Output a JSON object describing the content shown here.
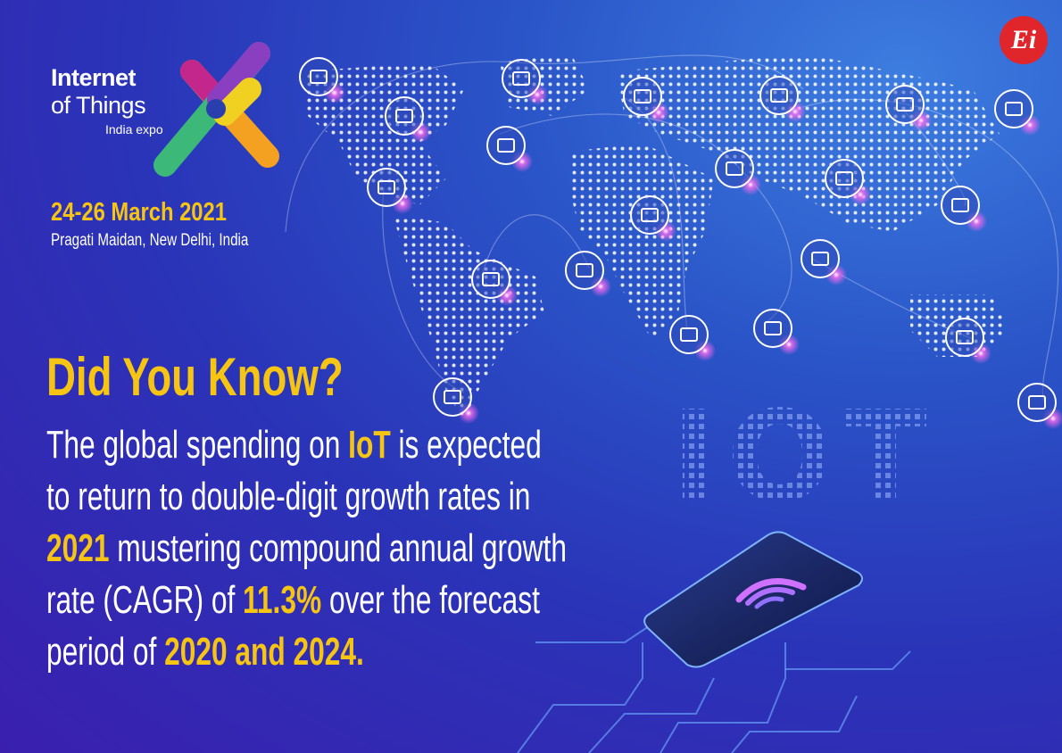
{
  "logo": {
    "badge": "Ei",
    "line1": "Internet",
    "line2": "of Things",
    "line3": "India expo"
  },
  "event": {
    "date": "24-26 March 2021",
    "venue": "Pragati Maidan, New Delhi, India"
  },
  "decor_text": "IOT",
  "headline": "Did You Know?",
  "body": {
    "lines": [
      [
        {
          "text": "The global spending on "
        },
        {
          "text": "IoT",
          "emphasis": true
        },
        {
          "text": " is expected"
        }
      ],
      [
        {
          "text": "to return to double-digit growth rates in"
        }
      ],
      [
        {
          "text": "2021",
          "emphasis": true
        },
        {
          "text": " mustering compound annual growth"
        }
      ],
      [
        {
          "text": "rate (CAGR) of "
        },
        {
          "text": "11.3%",
          "emphasis": true
        },
        {
          "text": " over the forecast"
        }
      ],
      [
        {
          "text": "period of "
        },
        {
          "text": "2020 and 2024.",
          "emphasis": true
        }
      ]
    ]
  }
}
